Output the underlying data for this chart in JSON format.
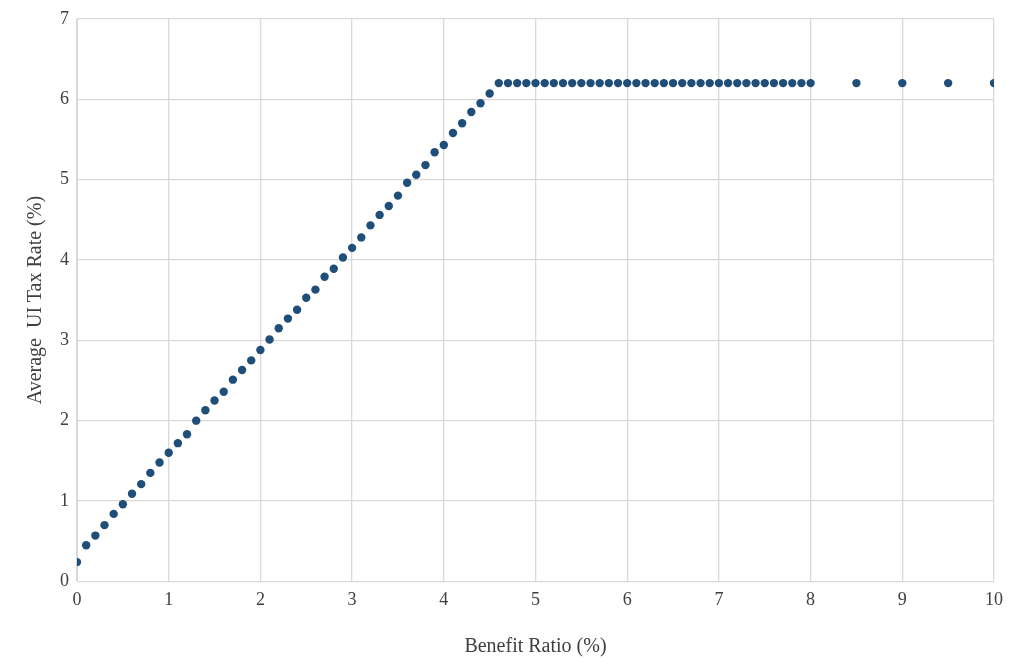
{
  "chart_data": {
    "type": "scatter",
    "xlabel": "Benefit Ratio (%)",
    "ylabel": "Average  UI Tax Rate (%)",
    "x": [
      0,
      0.1,
      0.2,
      0.3,
      0.4,
      0.5,
      0.6,
      0.7,
      0.8,
      0.9,
      1,
      1.1,
      1.2,
      1.3,
      1.4,
      1.5,
      1.6,
      1.7,
      1.8,
      1.9,
      2,
      2.1,
      2.2,
      2.3,
      2.4,
      2.5,
      2.6,
      2.7,
      2.8,
      2.9,
      3,
      3.1,
      3.2,
      3.3,
      3.4,
      3.5,
      3.6,
      3.7,
      3.8,
      3.9,
      4,
      4.1,
      4.2,
      4.3,
      4.4,
      4.5,
      4.6,
      4.7,
      4.8,
      4.9,
      5,
      5.1,
      5.2,
      5.3,
      5.4,
      5.5,
      5.6,
      5.7,
      5.8,
      5.9,
      6,
      6.1,
      6.2,
      6.3,
      6.4,
      6.5,
      6.6,
      6.7,
      6.8,
      6.9,
      7,
      7.1,
      7.2,
      7.3,
      7.4,
      7.5,
      7.6,
      7.7,
      7.8,
      7.9,
      8,
      8.5,
      9,
      9.5,
      10
    ],
    "series": [
      {
        "color": "#1f4e79",
        "values": [
          0.24,
          0.45,
          0.57,
          0.7,
          0.84,
          0.96,
          1.09,
          1.21,
          1.35,
          1.48,
          1.6,
          1.72,
          1.83,
          2.0,
          2.13,
          2.25,
          2.36,
          2.51,
          2.63,
          2.75,
          2.88,
          3.01,
          3.15,
          3.27,
          3.38,
          3.53,
          3.63,
          3.79,
          3.89,
          4.03,
          4.15,
          4.28,
          4.43,
          4.56,
          4.67,
          4.8,
          4.96,
          5.06,
          5.18,
          5.34,
          5.43,
          5.58,
          5.7,
          5.84,
          5.95,
          6.07,
          6.2,
          6.2,
          6.2,
          6.2,
          6.2,
          6.2,
          6.2,
          6.2,
          6.2,
          6.2,
          6.2,
          6.2,
          6.2,
          6.2,
          6.2,
          6.2,
          6.2,
          6.2,
          6.2,
          6.2,
          6.2,
          6.2,
          6.2,
          6.2,
          6.2,
          6.2,
          6.2,
          6.2,
          6.2,
          6.2,
          6.2,
          6.2,
          6.2,
          6.2,
          6.2,
          6.2,
          6.2,
          6.2,
          6.2
        ]
      }
    ],
    "xlim": [
      0,
      10
    ],
    "xticks": [
      0,
      1,
      2,
      3,
      4,
      5,
      6,
      7,
      8,
      9,
      10
    ],
    "ylim": [
      0,
      7
    ],
    "yticks": [
      0,
      1,
      2,
      3,
      4,
      5,
      6,
      7
    ],
    "grid": true,
    "legend": false,
    "marker": "circle"
  }
}
